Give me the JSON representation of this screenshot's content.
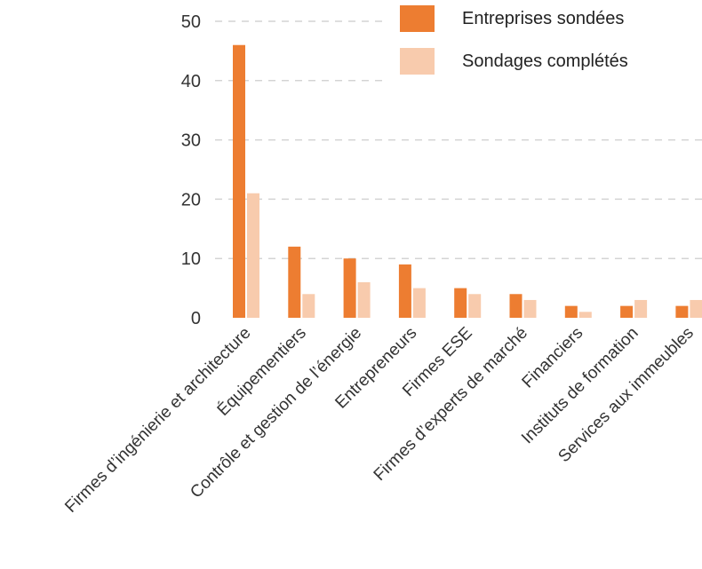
{
  "chart_data": {
    "type": "bar",
    "categories": [
      "Firmes d’ingénierie et architecture",
      "Équipementiers",
      "Contrôle et gestion de l’énergie",
      "Entrepreneurs",
      "Firmes ESE",
      "Firmes d’experts de marché",
      "Financiers",
      "Instituts de formation",
      "Services aux immeubles"
    ],
    "series": [
      {
        "name": "Entreprises sondées",
        "color": "#ed7d31",
        "values": [
          46,
          12,
          10,
          9,
          5,
          4,
          2,
          2,
          2
        ]
      },
      {
        "name": "Sondages complétés",
        "color": "#f8cbad",
        "values": [
          21,
          4,
          6,
          5,
          4,
          3,
          1,
          3,
          3
        ]
      }
    ],
    "ylim": [
      0,
      50
    ],
    "yticks": [
      0,
      10,
      20,
      30,
      40,
      50
    ],
    "grid": true,
    "legend_position": "top-right",
    "xlabel": "",
    "ylabel": ""
  }
}
